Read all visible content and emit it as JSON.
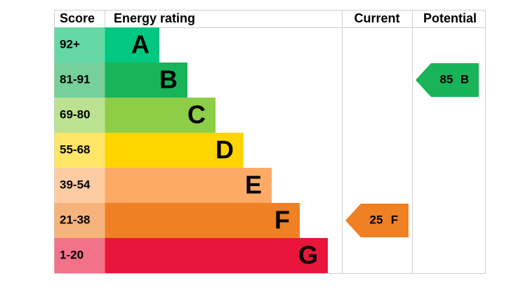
{
  "headers": {
    "score": "Score",
    "rating": "Energy rating",
    "current": "Current",
    "potential": "Potential"
  },
  "bands": [
    {
      "score": "92+",
      "letter": "A",
      "color": "#00c781",
      "score_color": "#66d8a6"
    },
    {
      "score": "81-91",
      "letter": "B",
      "color": "#19b459",
      "score_color": "#75d09a"
    },
    {
      "score": "69-80",
      "letter": "C",
      "color": "#8dce46",
      "score_color": "#bbe290"
    },
    {
      "score": "55-68",
      "letter": "D",
      "color": "#ffd500",
      "score_color": "#ffe666"
    },
    {
      "score": "39-54",
      "letter": "E",
      "color": "#fcaa65",
      "score_color": "#fdcca3"
    },
    {
      "score": "21-38",
      "letter": "F",
      "color": "#ef8023",
      "score_color": "#f5b37b"
    },
    {
      "score": "1-20",
      "letter": "G",
      "color": "#e9153b",
      "score_color": "#f27389"
    }
  ],
  "current": {
    "value": 25,
    "letter": "F"
  },
  "potential": {
    "value": 85,
    "letter": "B"
  }
}
